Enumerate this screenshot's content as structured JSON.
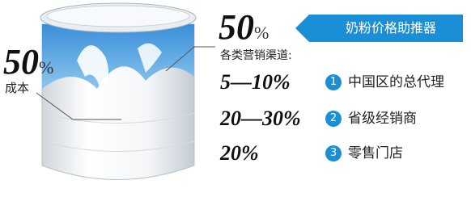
{
  "banner": {
    "title": "奶粉价格助推器"
  },
  "channels": {
    "share": {
      "value": "50",
      "unit": "%"
    },
    "label": "各类营销渠道:",
    "items": [
      {
        "range": "5—10%",
        "number": "1",
        "label": "中国区的总代理"
      },
      {
        "range": "20—30%",
        "number": "2",
        "label": "省级经销商"
      },
      {
        "range": "20%",
        "number": "3",
        "label": "零售门店"
      }
    ]
  },
  "cost": {
    "share": {
      "value": "50",
      "unit": "%"
    },
    "label": "成本"
  }
}
